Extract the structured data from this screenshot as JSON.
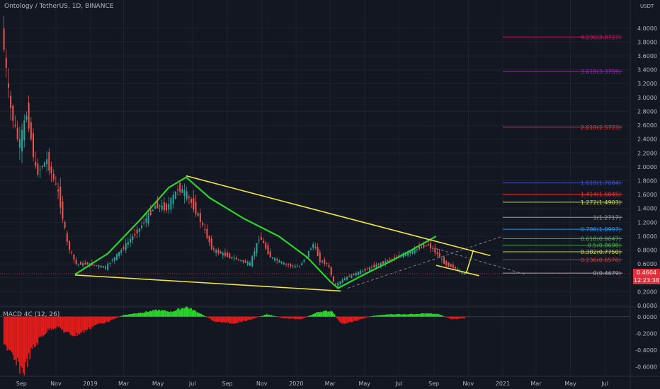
{
  "header": {
    "symbol": "Ontology / TetherUS, 1D, BINANCE",
    "unit": "USDT"
  },
  "price_badge": {
    "last_price": "0.4604",
    "countdown": "12:23:38"
  },
  "macd_label": "MACD 4C (12, 26)",
  "colors": {
    "background": "#131722",
    "up_candle": "#26a69a",
    "down_candle": "#ef5350",
    "green_curve": "#2ed12e",
    "trendline": "#f0e442",
    "macd_up": "#2bd62b",
    "macd_down": "#e21b1b",
    "price_line": "#e0303d"
  },
  "chart_data": [
    {
      "type": "line",
      "name": "price",
      "ylim": [
        0,
        4.1
      ],
      "y_ticks": [
        "4.0000",
        "3.8000",
        "3.6000",
        "3.4000",
        "3.2000",
        "3.0000",
        "2.8000",
        "2.6000",
        "2.4000",
        "2.2000",
        "2.0000",
        "1.8000",
        "1.6000",
        "1.4000",
        "1.2000",
        "1.0000",
        "0.8000",
        "0.6000",
        "0.4000",
        "0.2000",
        "0.0000"
      ],
      "x_ticks": [
        "Sep",
        "Nov",
        "2019",
        "Mar",
        "May",
        "Jul",
        "Sep",
        "Nov",
        "2020",
        "Mar",
        "May",
        "Jul",
        "Sep",
        "Nov",
        "2021",
        "Mar",
        "May",
        "Jul"
      ],
      "x_tick_dates": [
        "2018-09-01",
        "2018-11-01",
        "2019-01-01",
        "2019-03-01",
        "2019-05-01",
        "2019-07-01",
        "2019-09-01",
        "2019-11-01",
        "2020-01-01",
        "2020-03-01",
        "2020-05-01",
        "2020-07-01",
        "2020-09-01",
        "2020-11-01",
        "2021-01-01",
        "2021-03-01",
        "2021-05-01",
        "2021-07-01"
      ],
      "x": [
        "2018-08-01",
        "2018-08-15",
        "2018-09-01",
        "2018-09-15",
        "2018-10-01",
        "2018-10-20",
        "2018-11-10",
        "2018-11-25",
        "2018-12-10",
        "2019-01-01",
        "2019-02-01",
        "2019-03-01",
        "2019-04-01",
        "2019-05-01",
        "2019-05-20",
        "2019-06-10",
        "2019-06-25",
        "2019-07-15",
        "2019-08-10",
        "2019-09-10",
        "2019-10-15",
        "2019-11-01",
        "2019-11-20",
        "2019-12-15",
        "2020-01-10",
        "2020-02-05",
        "2020-02-15",
        "2020-03-01",
        "2020-03-13",
        "2020-04-01",
        "2020-05-01",
        "2020-06-01",
        "2020-07-01",
        "2020-08-01",
        "2020-08-25",
        "2020-09-10",
        "2020-09-25",
        "2020-10-10",
        "2020-10-28"
      ],
      "values": [
        4.0,
        2.9,
        2.3,
        2.8,
        1.9,
        2.1,
        1.6,
        0.9,
        0.6,
        0.6,
        0.55,
        0.8,
        1.1,
        1.45,
        1.4,
        1.7,
        1.6,
        1.3,
        0.8,
        0.7,
        0.6,
        1.0,
        0.7,
        0.6,
        0.55,
        0.9,
        0.65,
        0.6,
        0.28,
        0.4,
        0.5,
        0.6,
        0.7,
        0.8,
        0.88,
        0.75,
        0.6,
        0.55,
        0.46
      ],
      "fib_levels": [
        {
          "label": "4.236(3.8727)",
          "value": 3.8727,
          "color": "#c2185b"
        },
        {
          "label": "3.618(3.3759)",
          "value": 3.3759,
          "color": "#9c27b0"
        },
        {
          "label": "2.618(2.5723)",
          "value": 2.5723,
          "color": "#e53935"
        },
        {
          "label": "1.618(1.7684)",
          "value": 1.7684,
          "color": "#3f51b5"
        },
        {
          "label": "1.414(1.6045)",
          "value": 1.6045,
          "color": "#e53935"
        },
        {
          "label": "1.272(1.4903)",
          "value": 1.4903,
          "color": "#cddc39"
        },
        {
          "label": "1(1.2717)",
          "value": 1.2717,
          "color": "#9e9e9e"
        },
        {
          "label": "0.786(1.0997)",
          "value": 1.0997,
          "color": "#2196f3"
        },
        {
          "label": "0.618(0.9647)",
          "value": 0.9647,
          "color": "#4caf50"
        },
        {
          "label": "0.5(0.8698)",
          "value": 0.8698,
          "color": "#4caf50"
        },
        {
          "label": "0.382(0.7750)",
          "value": 0.775,
          "color": "#cddc39"
        },
        {
          "label": "0.236(0.6576)",
          "value": 0.6576,
          "color": "#e53935"
        },
        {
          "label": "0(0.4679)",
          "value": 0.4679,
          "color": "#9e9e9e"
        }
      ],
      "green_curve": {
        "x": [
          "2018-12-05",
          "2019-02-01",
          "2019-04-01",
          "2019-05-20",
          "2019-06-20",
          "2019-08-01",
          "2019-10-01",
          "2019-12-01",
          "2020-01-20",
          "2020-03-01",
          "2020-03-15",
          "2020-05-01",
          "2020-07-01",
          "2020-09-05"
        ],
        "values": [
          0.45,
          0.75,
          1.25,
          1.7,
          1.85,
          1.55,
          1.25,
          1.0,
          0.7,
          0.35,
          0.25,
          0.45,
          0.7,
          1.0
        ]
      },
      "trendlines": [
        {
          "x": [
            "2018-12-05",
            "2020-03-20"
          ],
          "values": [
            0.44,
            0.21
          ]
        },
        {
          "x": [
            "2019-06-20",
            "2020-12-10"
          ],
          "values": [
            1.87,
            0.72
          ]
        },
        {
          "x": [
            "2020-09-05",
            "2020-11-20"
          ],
          "values": [
            0.58,
            0.43
          ]
        },
        {
          "x": [
            "2020-10-28",
            "2020-11-10"
          ],
          "values": [
            0.46,
            0.8
          ]
        }
      ],
      "dashed_channel": [
        {
          "x": [
            "2020-04-01",
            "2021-01-01"
          ],
          "values": [
            0.25,
            1.0
          ]
        },
        {
          "x": [
            "2020-09-05",
            "2021-02-10"
          ],
          "values": [
            0.82,
            0.45
          ]
        }
      ]
    },
    {
      "type": "bar",
      "name": "MACD 4C (12, 26)",
      "ylim": [
        -0.7,
        0.1
      ],
      "y_ticks": [
        "0.0000",
        "-0.2000",
        "-0.4000",
        "-0.6000"
      ],
      "x": [
        "2018-08-01",
        "2018-08-20",
        "2018-09-05",
        "2018-09-20",
        "2018-10-05",
        "2018-10-20",
        "2018-11-05",
        "2018-11-20",
        "2018-12-05",
        "2018-12-20",
        "2019-01-10",
        "2019-02-01",
        "2019-03-01",
        "2019-04-01",
        "2019-05-01",
        "2019-05-25",
        "2019-06-20",
        "2019-07-15",
        "2019-08-10",
        "2019-09-10",
        "2019-10-10",
        "2019-11-10",
        "2019-12-10",
        "2020-01-10",
        "2020-02-10",
        "2020-03-05",
        "2020-03-20",
        "2020-04-15",
        "2020-05-15",
        "2020-06-15",
        "2020-07-15",
        "2020-08-15",
        "2020-09-10",
        "2020-10-01",
        "2020-10-25"
      ],
      "values": [
        -0.3,
        -0.55,
        -0.65,
        -0.4,
        -0.25,
        -0.15,
        -0.12,
        -0.2,
        -0.22,
        -0.18,
        -0.1,
        -0.06,
        0.02,
        0.05,
        0.08,
        0.06,
        0.12,
        0.04,
        -0.06,
        -0.08,
        -0.04,
        0.03,
        -0.02,
        -0.03,
        0.06,
        0.07,
        -0.09,
        -0.05,
        0.01,
        0.03,
        0.03,
        0.04,
        0.03,
        -0.03,
        -0.02
      ]
    }
  ]
}
